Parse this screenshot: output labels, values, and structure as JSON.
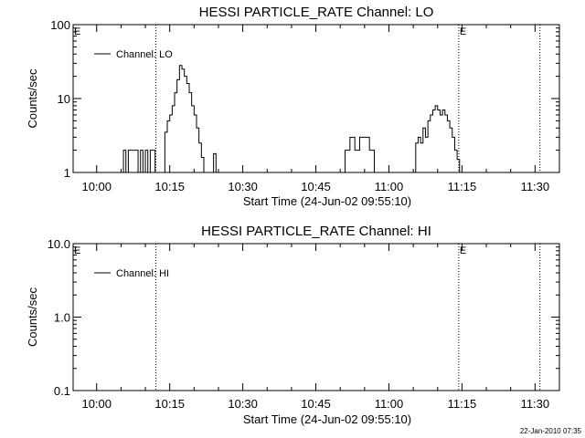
{
  "chart_data": [
    {
      "type": "line",
      "title": "HESSI PARTICLE_RATE Channel: LO",
      "xlabel": "Start Time (24-Jun-02 09:55:10)",
      "ylabel": "Counts/sec",
      "y_scale": "log",
      "ylim": [
        1,
        100
      ],
      "xlim": [
        "09:55:10",
        "11:35:00"
      ],
      "x_ticks": [
        "10:00",
        "10:15",
        "10:30",
        "10:45",
        "11:00",
        "11:15",
        "11:30"
      ],
      "y_ticks": [
        "1",
        "10",
        "100"
      ],
      "legend": {
        "position": "top-left",
        "entries": [
          "Channel: LO"
        ]
      },
      "markers": [
        {
          "x": "10:12:10",
          "label": ""
        },
        {
          "x": "11:14:20",
          "label": "E"
        },
        {
          "x": "11:31:00",
          "label": ""
        }
      ],
      "corner_label": "E",
      "series": [
        {
          "name": "Channel: LO",
          "segments": [
            {
              "x": [
                "10:05:00",
                "10:05:30",
                "10:06:00",
                "10:06:30",
                "10:07:00",
                "10:07:30",
                "10:08:00",
                "10:08:30",
                "10:09:00",
                "10:09:30",
                "10:10:00",
                "10:10:30",
                "10:11:00",
                "10:11:30",
                "10:12:00",
                "10:12:30"
              ],
              "y": [
                1,
                2,
                1,
                2,
                2,
                2,
                2,
                1,
                2,
                1,
                2,
                1,
                2,
                2,
                1,
                1
              ]
            },
            {
              "x": [
                "10:13:30",
                "10:14:00",
                "10:14:30",
                "10:15:00",
                "10:15:30",
                "10:16:00",
                "10:16:30",
                "10:17:00",
                "10:17:30",
                "10:18:00",
                "10:18:30",
                "10:19:00",
                "10:19:30",
                "10:20:00",
                "10:20:30",
                "10:21:00",
                "10:21:30",
                "10:22:00"
              ],
              "y": [
                1,
                3.5,
                5,
                6,
                8,
                12,
                18,
                28,
                25,
                20,
                16,
                12,
                8,
                6,
                4,
                2.5,
                1.6,
                1
              ]
            },
            {
              "x": [
                "10:23:30",
                "10:24:00",
                "10:24:30"
              ],
              "y": [
                1,
                1.8,
                1
              ]
            },
            {
              "x": [
                "10:50:00",
                "10:51:00",
                "10:52:00",
                "10:53:00",
                "10:54:00",
                "10:55:00",
                "10:56:00",
                "10:57:00"
              ],
              "y": [
                1,
                2,
                3,
                2,
                3,
                3,
                2,
                1
              ]
            },
            {
              "x": [
                "11:05:00",
                "11:05:30",
                "11:06:00",
                "11:06:30",
                "11:07:00",
                "11:07:30",
                "11:08:00",
                "11:08:30",
                "11:09:00",
                "11:09:30",
                "11:10:00",
                "11:10:30",
                "11:11:00",
                "11:11:30",
                "11:12:00",
                "11:12:30",
                "11:13:00",
                "11:13:30",
                "11:14:00",
                "11:14:30"
              ],
              "y": [
                1,
                2.5,
                3,
                2.5,
                4,
                3,
                5,
                6,
                7,
                8,
                7,
                6,
                7,
                6,
                5,
                4,
                3,
                2,
                1.5,
                1
              ]
            }
          ]
        }
      ]
    },
    {
      "type": "line",
      "title": "HESSI PARTICLE_RATE Channel: HI",
      "xlabel": "Start Time (24-Jun-02 09:55:10)",
      "ylabel": "Counts/sec",
      "y_scale": "log",
      "ylim": [
        0.1,
        10
      ],
      "xlim": [
        "09:55:10",
        "11:35:00"
      ],
      "x_ticks": [
        "10:00",
        "10:15",
        "10:30",
        "10:45",
        "11:00",
        "11:15",
        "11:30"
      ],
      "y_ticks": [
        "0.1",
        "1.0",
        "10.0"
      ],
      "legend": {
        "position": "top-left",
        "entries": [
          "Channel: HI"
        ]
      },
      "markers": [
        {
          "x": "10:12:10",
          "label": ""
        },
        {
          "x": "11:14:20",
          "label": "E"
        },
        {
          "x": "11:31:00",
          "label": ""
        }
      ],
      "corner_label": "E",
      "series": [
        {
          "name": "Channel: HI",
          "segments": []
        }
      ]
    }
  ],
  "timestamp": "22-Jan-2010 07:35"
}
